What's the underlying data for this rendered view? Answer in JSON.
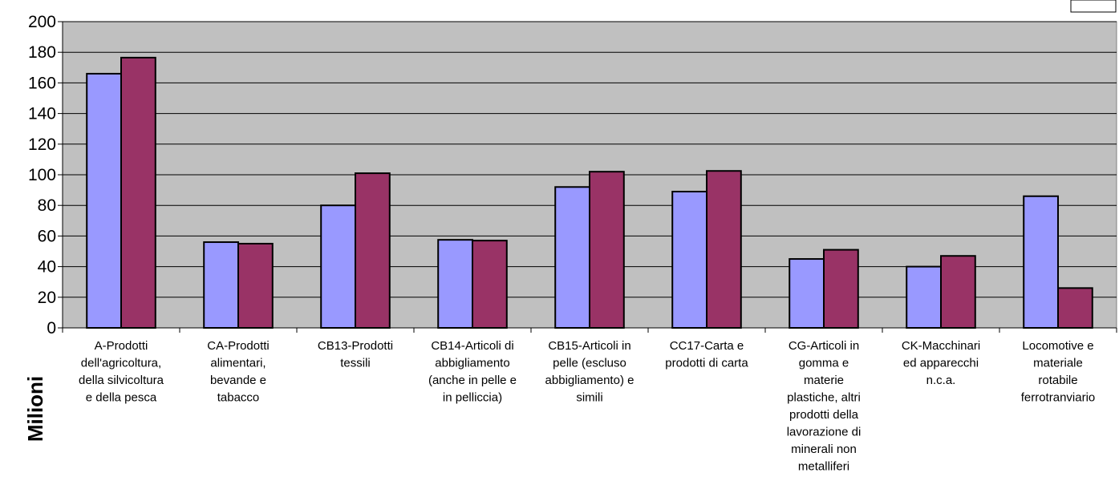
{
  "chart_data": {
    "type": "bar",
    "ylabel": "Milioni",
    "ylim": [
      0,
      200
    ],
    "yticks": [
      0,
      20,
      40,
      60,
      80,
      100,
      120,
      140,
      160,
      180,
      200
    ],
    "grid": true,
    "legend": "top-right",
    "categories": [
      [
        "A-Prodotti",
        "dell'agricoltura,",
        "della silvicoltura",
        "e della pesca"
      ],
      [
        "CA-Prodotti",
        "alimentari,",
        "bevande e",
        "tabacco"
      ],
      [
        "CB13-Prodotti",
        "tessili"
      ],
      [
        "CB14-Articoli di",
        "abbigliamento",
        "(anche in pelle e",
        "in pelliccia)"
      ],
      [
        "CB15-Articoli in",
        "pelle (escluso",
        "abbigliamento) e",
        "simili"
      ],
      [
        "CC17-Carta e",
        "prodotti di carta"
      ],
      [
        "CG-Articoli in",
        "gomma e",
        "materie",
        "plastiche, altri",
        "prodotti della",
        "lavorazione di",
        "minerali non",
        "metalliferi"
      ],
      [
        "CK-Macchinari",
        "ed apparecchi",
        "n.c.a."
      ],
      [
        "Locomotive e",
        "materiale",
        "rotabile",
        "ferrotranviario"
      ]
    ],
    "series": [
      {
        "values": [
          166,
          56,
          80,
          57.5,
          92,
          89,
          45,
          40,
          86
        ],
        "color": "#9999ff"
      },
      {
        "values": [
          176.5,
          55,
          101,
          57,
          102,
          102.5,
          51,
          47,
          26
        ],
        "color": "#993366"
      }
    ],
    "plot_background": "#c0c0c0"
  }
}
